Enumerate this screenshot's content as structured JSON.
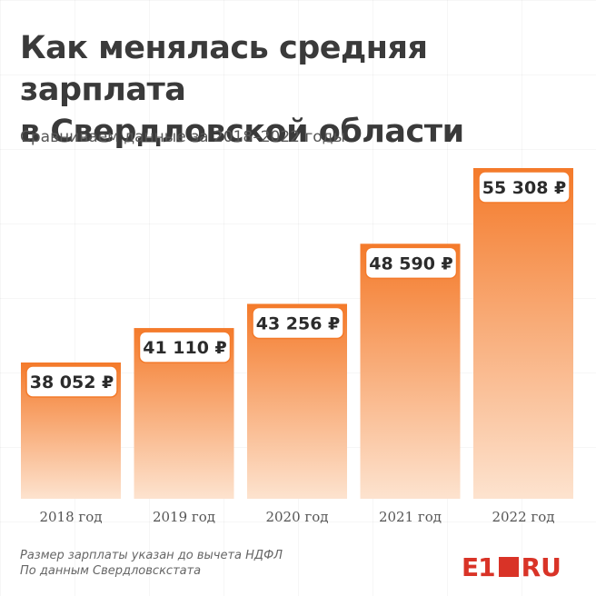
{
  "header": {
    "title_line1": "Как менялась средняя зарплата",
    "title_line2": "в Свердловской области",
    "subtitle": "Сравниваем данные за 2018–2022 годы"
  },
  "chart_data": {
    "type": "bar",
    "categories": [
      "2018 год",
      "2019 год",
      "2020 год",
      "2021 год",
      "2022 год"
    ],
    "values": [
      38052,
      41110,
      43256,
      48590,
      55308
    ],
    "value_labels": [
      "38 052 ₽",
      "41 110 ₽",
      "43 256 ₽",
      "48 590 ₽",
      "55 308 ₽"
    ],
    "xlabel": "",
    "ylabel": "",
    "ylim": [
      0,
      60000
    ],
    "grid": false,
    "legend": "none"
  },
  "footer": {
    "note_line1": "Размер зарплаты указан до вычета НДФЛ",
    "note_line2": "По данным Свердловскстата",
    "logo_left": "E1",
    "logo_right": "RU"
  },
  "colors": {
    "bar_top": "#f47a2a",
    "bar_bottom": "#fde3cf",
    "label_border": "#f47a2a",
    "title": "#3a3a3a",
    "brand": "#d93327"
  }
}
